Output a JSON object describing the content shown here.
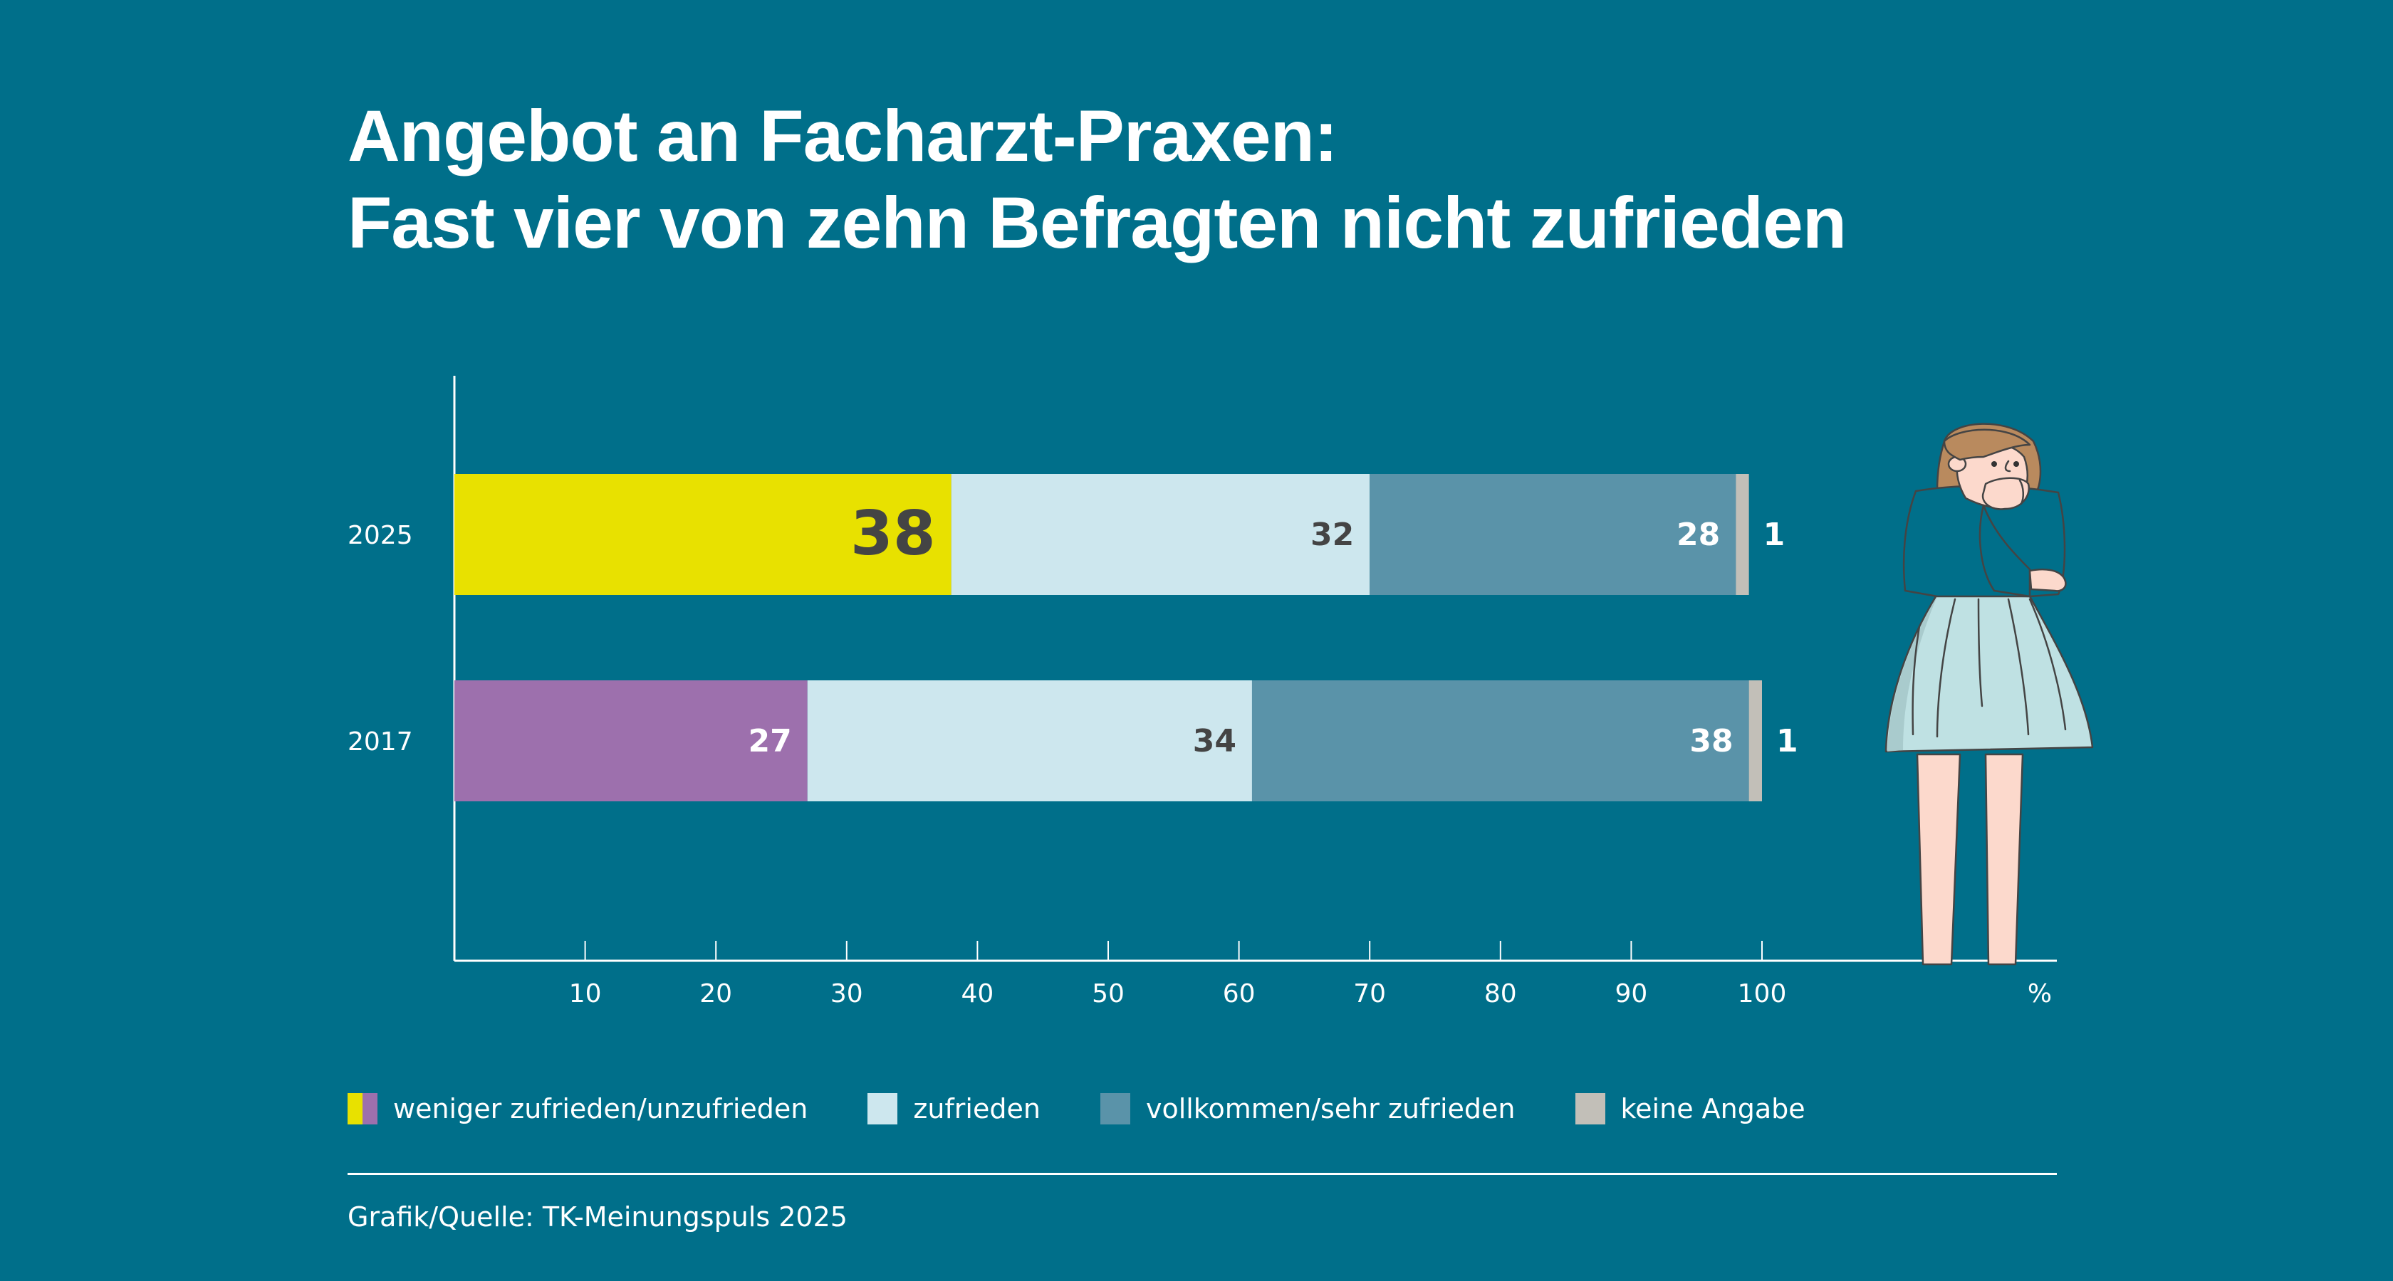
{
  "title": {
    "line1": "Angebot an Facharzt-Praxen:",
    "line2": "Fast vier von zehn Befragten nicht zufrieden"
  },
  "chart_data": {
    "type": "bar",
    "orientation": "horizontal",
    "stacked": true,
    "title": "Angebot an Facharzt-Praxen: Fast vier von zehn Befragten nicht zufrieden",
    "categories": [
      "2025",
      "2017"
    ],
    "series": [
      {
        "name": "weniger zufrieden/unzufrieden",
        "values": [
          38,
          27
        ],
        "colors": [
          "#e8e100",
          "#9d70ad"
        ],
        "label_colors": [
          "#444444",
          "#ffffff"
        ]
      },
      {
        "name": "zufrieden",
        "values": [
          32,
          34
        ],
        "color": "#cde7ee",
        "label_color": "#444444"
      },
      {
        "name": "vollkommen/sehr zufrieden",
        "values": [
          28,
          38
        ],
        "color": "#5a93a9",
        "label_color": "#ffffff"
      },
      {
        "name": "keine Angabe",
        "values": [
          1,
          1
        ],
        "color": "#c2bfb8",
        "label_color": "#ffffff"
      }
    ],
    "xlabel": "%",
    "ylabel": "",
    "xlim": [
      0,
      100
    ],
    "xticks": [
      10,
      20,
      30,
      40,
      50,
      60,
      70,
      80,
      90,
      100
    ],
    "grid": false,
    "legend_position": "bottom"
  },
  "legend": [
    {
      "label": "weniger zufrieden/unzufrieden",
      "colors": [
        "#e8e100",
        "#9d70ad"
      ]
    },
    {
      "label": "zufrieden",
      "colors": [
        "#cde7ee"
      ]
    },
    {
      "label": "vollkommen/sehr zufrieden",
      "colors": [
        "#5a93a9"
      ]
    },
    {
      "label": "keine Angabe",
      "colors": [
        "#c2bfb8"
      ]
    }
  ],
  "source": "Grafik/Quelle: TK-Meinungspuls 2025",
  "illustration": "worried-woman-illustration",
  "colors": {
    "background": "#006f8a",
    "text": "#ffffff"
  }
}
